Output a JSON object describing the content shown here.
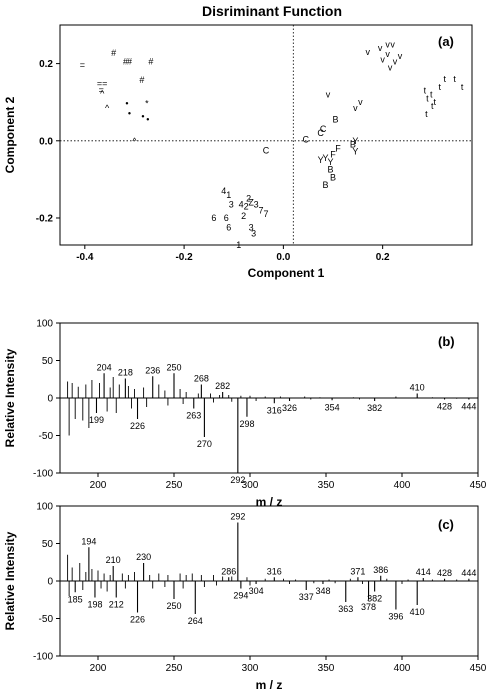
{
  "figure_title": "Disriminant Function",
  "chart_data": [
    {
      "panel": "(a)",
      "type": "scatter",
      "xlabel": "Component 1",
      "ylabel": "Component 2",
      "xlim": [
        -0.45,
        0.38
      ],
      "ylim": [
        -0.27,
        0.3
      ],
      "xticks": [
        -0.4,
        -0.2,
        0.0,
        0.2
      ],
      "xtick_labels": [
        "-0.4",
        "-0.2",
        "0.0",
        "0.2"
      ],
      "yticks": [
        0.2,
        0.0,
        -0.2
      ],
      "ytick_labels": [
        "0.2",
        "0.0",
        "-0.2"
      ],
      "reference_lines": {
        "x": 0.02,
        "y": 0.0,
        "style": "dotted"
      },
      "points": [
        {
          "label": "=",
          "x": -0.405,
          "y": 0.196
        },
        {
          "label": "==",
          "x": -0.365,
          "y": 0.148
        },
        {
          "label": "=",
          "x": -0.367,
          "y": 0.132
        },
        {
          "label": "^",
          "x": -0.365,
          "y": 0.122
        },
        {
          "label": "^",
          "x": -0.355,
          "y": 0.085
        },
        {
          "label": "^",
          "x": -0.3,
          "y": 0.0
        },
        {
          "label": "#",
          "x": -0.342,
          "y": 0.227
        },
        {
          "label": "#",
          "x": -0.318,
          "y": 0.206
        },
        {
          "label": "#",
          "x": -0.31,
          "y": 0.206
        },
        {
          "label": "#",
          "x": -0.267,
          "y": 0.206
        },
        {
          "label": "#",
          "x": -0.285,
          "y": 0.158
        },
        {
          "label": "•",
          "x": -0.315,
          "y": 0.096
        },
        {
          "label": "•",
          "x": -0.31,
          "y": 0.071
        },
        {
          "label": "*",
          "x": -0.275,
          "y": 0.096
        },
        {
          "label": "•",
          "x": -0.283,
          "y": 0.063
        },
        {
          "label": "•",
          "x": -0.273,
          "y": 0.055
        },
        {
          "label": "C",
          "x": -0.035,
          "y": -0.025
        },
        {
          "label": "C",
          "x": 0.045,
          "y": 0.003
        },
        {
          "label": "C",
          "x": 0.075,
          "y": 0.02
        },
        {
          "label": "C",
          "x": 0.08,
          "y": 0.03
        },
        {
          "label": "v",
          "x": 0.09,
          "y": 0.12
        },
        {
          "label": "v",
          "x": 0.155,
          "y": 0.1
        },
        {
          "label": "v",
          "x": 0.145,
          "y": 0.085
        },
        {
          "label": "v",
          "x": 0.17,
          "y": 0.23
        },
        {
          "label": "v",
          "x": 0.195,
          "y": 0.24
        },
        {
          "label": "v",
          "x": 0.2,
          "y": 0.21
        },
        {
          "label": "v",
          "x": 0.21,
          "y": 0.25
        },
        {
          "label": "v",
          "x": 0.22,
          "y": 0.25
        },
        {
          "label": "v",
          "x": 0.215,
          "y": 0.19
        },
        {
          "label": "v",
          "x": 0.235,
          "y": 0.22
        },
        {
          "label": "v",
          "x": 0.21,
          "y": 0.225
        },
        {
          "label": "v",
          "x": 0.225,
          "y": 0.205
        },
        {
          "label": "t",
          "x": 0.285,
          "y": 0.13
        },
        {
          "label": "t",
          "x": 0.29,
          "y": 0.11
        },
        {
          "label": "t",
          "x": 0.298,
          "y": 0.12
        },
        {
          "label": "t",
          "x": 0.305,
          "y": 0.1
        },
        {
          "label": "t",
          "x": 0.315,
          "y": 0.14
        },
        {
          "label": "t",
          "x": 0.325,
          "y": 0.16
        },
        {
          "label": "t",
          "x": 0.345,
          "y": 0.16
        },
        {
          "label": "t",
          "x": 0.36,
          "y": 0.14
        },
        {
          "label": "t",
          "x": 0.288,
          "y": 0.07
        },
        {
          "label": "t",
          "x": 0.3,
          "y": 0.09
        },
        {
          "label": "B",
          "x": 0.105,
          "y": 0.055
        },
        {
          "label": "B",
          "x": 0.14,
          "y": -0.01
        },
        {
          "label": "B",
          "x": 0.1,
          "y": -0.095
        },
        {
          "label": "B",
          "x": 0.085,
          "y": -0.115
        },
        {
          "label": "B",
          "x": 0.095,
          "y": -0.075
        },
        {
          "label": "Y",
          "x": 0.145,
          "y": 0.0
        },
        {
          "label": "Y",
          "x": 0.145,
          "y": -0.028
        },
        {
          "label": "F",
          "x": 0.11,
          "y": -0.02
        },
        {
          "label": "F",
          "x": 0.1,
          "y": -0.035
        },
        {
          "label": "Y",
          "x": 0.085,
          "y": -0.045
        },
        {
          "label": "Y",
          "x": 0.075,
          "y": -0.05
        },
        {
          "label": "Y",
          "x": 0.095,
          "y": -0.055
        },
        {
          "label": "4",
          "x": -0.12,
          "y": -0.13
        },
        {
          "label": "1",
          "x": -0.11,
          "y": -0.14
        },
        {
          "label": "3",
          "x": -0.105,
          "y": -0.165
        },
        {
          "label": "2",
          "x": -0.07,
          "y": -0.15
        },
        {
          "label": "Z",
          "x": -0.065,
          "y": -0.16
        },
        {
          "label": "3",
          "x": -0.055,
          "y": -0.165
        },
        {
          "label": "4",
          "x": -0.085,
          "y": -0.165
        },
        {
          "label": "2",
          "x": -0.075,
          "y": -0.17
        },
        {
          "label": "7",
          "x": -0.045,
          "y": -0.18
        },
        {
          "label": "7",
          "x": -0.035,
          "y": -0.19
        },
        {
          "label": "6",
          "x": -0.14,
          "y": -0.2
        },
        {
          "label": "6",
          "x": -0.115,
          "y": -0.2
        },
        {
          "label": "2",
          "x": -0.08,
          "y": -0.195
        },
        {
          "label": "3",
          "x": -0.065,
          "y": -0.225
        },
        {
          "label": "6",
          "x": -0.11,
          "y": -0.225
        },
        {
          "label": "3",
          "x": -0.06,
          "y": -0.24
        },
        {
          "label": "1",
          "x": -0.09,
          "y": -0.27
        }
      ]
    },
    {
      "panel": "(b)",
      "type": "bar",
      "xlabel": "m / z",
      "ylabel": "Relative Intensity",
      "xlim": [
        175,
        450
      ],
      "ylim": [
        -100,
        100
      ],
      "xticks": [
        200,
        250,
        300,
        350,
        400,
        450
      ],
      "yticks": [
        100,
        50,
        0,
        -50,
        -100
      ],
      "labeled_peaks": [
        {
          "mz": 199,
          "value": -20
        },
        {
          "mz": 204,
          "value": 33
        },
        {
          "mz": 218,
          "value": 26
        },
        {
          "mz": 226,
          "value": -28
        },
        {
          "mz": 236,
          "value": 29
        },
        {
          "mz": 250,
          "value": 33
        },
        {
          "mz": 263,
          "value": -14
        },
        {
          "mz": 268,
          "value": 18
        },
        {
          "mz": 270,
          "value": -52
        },
        {
          "mz": 282,
          "value": 8
        },
        {
          "mz": 292,
          "value": -100
        },
        {
          "mz": 298,
          "value": -25
        },
        {
          "mz": 316,
          "value": -7
        },
        {
          "mz": 326,
          "value": -4
        },
        {
          "mz": 354,
          "value": -3
        },
        {
          "mz": 382,
          "value": -4
        },
        {
          "mz": 410,
          "value": 6
        },
        {
          "mz": 428,
          "value": -2
        },
        {
          "mz": 444,
          "value": -2
        }
      ],
      "minor_peaks": [
        {
          "mz": 180,
          "value": 22
        },
        {
          "mz": 181,
          "value": -50
        },
        {
          "mz": 183,
          "value": 20
        },
        {
          "mz": 185,
          "value": -28
        },
        {
          "mz": 187,
          "value": 15
        },
        {
          "mz": 190,
          "value": -30
        },
        {
          "mz": 192,
          "value": 18
        },
        {
          "mz": 194,
          "value": -40
        },
        {
          "mz": 196,
          "value": 24
        },
        {
          "mz": 201,
          "value": 20
        },
        {
          "mz": 206,
          "value": -18
        },
        {
          "mz": 208,
          "value": 14
        },
        {
          "mz": 210,
          "value": 28
        },
        {
          "mz": 212,
          "value": -20
        },
        {
          "mz": 214,
          "value": 18
        },
        {
          "mz": 220,
          "value": 16
        },
        {
          "mz": 222,
          "value": -14
        },
        {
          "mz": 224,
          "value": 12
        },
        {
          "mz": 230,
          "value": 14
        },
        {
          "mz": 232,
          "value": -12
        },
        {
          "mz": 240,
          "value": 18
        },
        {
          "mz": 244,
          "value": 10
        },
        {
          "mz": 246,
          "value": -10
        },
        {
          "mz": 254,
          "value": 12
        },
        {
          "mz": 256,
          "value": -8
        },
        {
          "mz": 258,
          "value": 8
        },
        {
          "mz": 266,
          "value": 6
        },
        {
          "mz": 274,
          "value": 6
        },
        {
          "mz": 276,
          "value": -6
        },
        {
          "mz": 280,
          "value": 4
        },
        {
          "mz": 286,
          "value": 4
        },
        {
          "mz": 288,
          "value": -5
        },
        {
          "mz": 294,
          "value": 3
        },
        {
          "mz": 300,
          "value": 3
        },
        {
          "mz": 304,
          "value": -4
        },
        {
          "mz": 310,
          "value": 2
        },
        {
          "mz": 320,
          "value": 2
        },
        {
          "mz": 336,
          "value": 2
        },
        {
          "mz": 340,
          "value": -2
        },
        {
          "mz": 346,
          "value": 1
        },
        {
          "mz": 368,
          "value": 1
        },
        {
          "mz": 372,
          "value": -2
        },
        {
          "mz": 396,
          "value": 2
        },
        {
          "mz": 420,
          "value": 1
        },
        {
          "mz": 436,
          "value": -1
        }
      ]
    },
    {
      "panel": "(c)",
      "type": "bar",
      "xlabel": "m / z",
      "ylabel": "Relative Intensity",
      "xlim": [
        175,
        450
      ],
      "ylim": [
        -100,
        100
      ],
      "xticks": [
        200,
        250,
        300,
        350,
        400,
        450
      ],
      "yticks": [
        100,
        50,
        0,
        -50,
        -100
      ],
      "labeled_peaks": [
        {
          "mz": 185,
          "value": -15
        },
        {
          "mz": 194,
          "value": 45
        },
        {
          "mz": 198,
          "value": -22
        },
        {
          "mz": 210,
          "value": 20
        },
        {
          "mz": 212,
          "value": -22
        },
        {
          "mz": 226,
          "value": -42
        },
        {
          "mz": 230,
          "value": 24
        },
        {
          "mz": 250,
          "value": -24
        },
        {
          "mz": 264,
          "value": -44
        },
        {
          "mz": 286,
          "value": 5
        },
        {
          "mz": 292,
          "value": 78
        },
        {
          "mz": 294,
          "value": -10
        },
        {
          "mz": 304,
          "value": -4
        },
        {
          "mz": 316,
          "value": 5
        },
        {
          "mz": 337,
          "value": -12
        },
        {
          "mz": 348,
          "value": -4
        },
        {
          "mz": 363,
          "value": -28
        },
        {
          "mz": 371,
          "value": 5
        },
        {
          "mz": 378,
          "value": -25
        },
        {
          "mz": 382,
          "value": -14
        },
        {
          "mz": 386,
          "value": 7
        },
        {
          "mz": 396,
          "value": -38
        },
        {
          "mz": 410,
          "value": -32
        },
        {
          "mz": 414,
          "value": 4
        },
        {
          "mz": 428,
          "value": 3
        },
        {
          "mz": 444,
          "value": 3
        }
      ],
      "minor_peaks": [
        {
          "mz": 180,
          "value": 35
        },
        {
          "mz": 181,
          "value": -20
        },
        {
          "mz": 183,
          "value": 18
        },
        {
          "mz": 188,
          "value": 24
        },
        {
          "mz": 190,
          "value": -12
        },
        {
          "mz": 192,
          "value": 12
        },
        {
          "mz": 196,
          "value": 16
        },
        {
          "mz": 200,
          "value": 14
        },
        {
          "mz": 202,
          "value": -10
        },
        {
          "mz": 204,
          "value": 10
        },
        {
          "mz": 206,
          "value": -14
        },
        {
          "mz": 208,
          "value": 8
        },
        {
          "mz": 216,
          "value": 10
        },
        {
          "mz": 218,
          "value": -10
        },
        {
          "mz": 220,
          "value": 8
        },
        {
          "mz": 224,
          "value": 12
        },
        {
          "mz": 234,
          "value": 8
        },
        {
          "mz": 236,
          "value": -10
        },
        {
          "mz": 240,
          "value": 10
        },
        {
          "mz": 244,
          "value": -8
        },
        {
          "mz": 246,
          "value": 8
        },
        {
          "mz": 254,
          "value": 10
        },
        {
          "mz": 256,
          "value": -10
        },
        {
          "mz": 258,
          "value": 8
        },
        {
          "mz": 262,
          "value": 10
        },
        {
          "mz": 268,
          "value": 8
        },
        {
          "mz": 270,
          "value": -8
        },
        {
          "mz": 276,
          "value": 8
        },
        {
          "mz": 278,
          "value": -6
        },
        {
          "mz": 282,
          "value": 6
        },
        {
          "mz": 288,
          "value": 6
        },
        {
          "mz": 298,
          "value": 5
        },
        {
          "mz": 300,
          "value": -6
        },
        {
          "mz": 310,
          "value": 3
        },
        {
          "mz": 322,
          "value": 3
        },
        {
          "mz": 326,
          "value": -4
        },
        {
          "mz": 330,
          "value": 2
        },
        {
          "mz": 342,
          "value": -3
        },
        {
          "mz": 352,
          "value": 2
        },
        {
          "mz": 356,
          "value": -3
        },
        {
          "mz": 366,
          "value": 3
        },
        {
          "mz": 374,
          "value": -4
        },
        {
          "mz": 390,
          "value": 3
        },
        {
          "mz": 400,
          "value": -4
        },
        {
          "mz": 404,
          "value": 2
        },
        {
          "mz": 420,
          "value": 2
        },
        {
          "mz": 436,
          "value": 2
        }
      ]
    }
  ]
}
